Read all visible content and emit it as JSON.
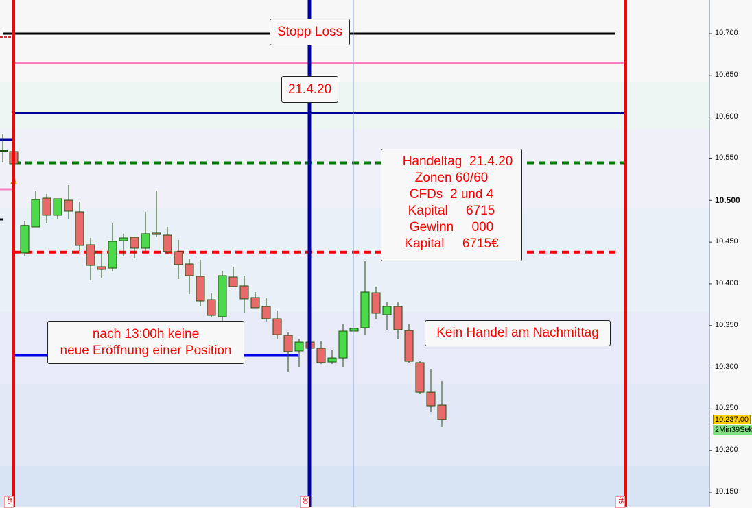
{
  "chart_data": {
    "type": "candlestick",
    "ylim": [
      10.135,
      10.74
    ],
    "yticks": [
      "10.700",
      "10.650",
      "10.600",
      "10.550",
      "10.500",
      "10.450",
      "10.400",
      "10.350",
      "10.300",
      "10.250",
      "10.200",
      "10.150"
    ],
    "ytick_values": [
      10.7,
      10.65,
      10.6,
      10.55,
      10.5,
      10.45,
      10.4,
      10.35,
      10.3,
      10.25,
      10.2,
      10.15
    ],
    "bold_tick": "10.500",
    "candles": [
      {
        "o": 10.5586,
        "h": 10.5586,
        "l": 10.5438,
        "c": 10.5438
      },
      {
        "o": 10.437,
        "h": 10.4756,
        "l": 10.4336,
        "c": 10.47
      },
      {
        "o": 10.4682,
        "h": 10.511,
        "l": 10.4682,
        "c": 10.501
      },
      {
        "o": 10.5027,
        "h": 10.5076,
        "l": 10.4723,
        "c": 10.4822
      },
      {
        "o": 10.4822,
        "h": 10.5019,
        "l": 10.4772,
        "c": 10.5019
      },
      {
        "o": 10.5002,
        "h": 10.5183,
        "l": 10.4772,
        "c": 10.4871
      },
      {
        "o": 10.4863,
        "h": 10.4986,
        "l": 10.4394,
        "c": 10.446
      },
      {
        "o": 10.4468,
        "h": 10.455,
        "l": 10.404,
        "c": 10.4221
      },
      {
        "o": 10.4205,
        "h": 10.437,
        "l": 10.4073,
        "c": 10.4172
      },
      {
        "o": 10.4188,
        "h": 10.473,
        "l": 10.4147,
        "c": 10.4509
      },
      {
        "o": 10.4517,
        "h": 10.46,
        "l": 10.4336,
        "c": 10.455
      },
      {
        "o": 10.4558,
        "h": 10.4567,
        "l": 10.4304,
        "c": 10.4427
      },
      {
        "o": 10.4427,
        "h": 10.4863,
        "l": 10.4394,
        "c": 10.46
      },
      {
        "o": 10.4608,
        "h": 10.5117,
        "l": 10.4558,
        "c": 10.4591
      },
      {
        "o": 10.4583,
        "h": 10.4682,
        "l": 10.4353,
        "c": 10.4386
      },
      {
        "o": 10.4386,
        "h": 10.4526,
        "l": 10.4057,
        "c": 10.423
      },
      {
        "o": 10.4238,
        "h": 10.4295,
        "l": 10.3876,
        "c": 10.4098
      },
      {
        "o": 10.409,
        "h": 10.4287,
        "l": 10.3728,
        "c": 10.3794
      },
      {
        "o": 10.381,
        "h": 10.3884,
        "l": 10.3597,
        "c": 10.3621
      },
      {
        "o": 10.3605,
        "h": 10.4155,
        "l": 10.3556,
        "c": 10.4098
      },
      {
        "o": 10.4082,
        "h": 10.4205,
        "l": 10.3958,
        "c": 10.3967
      },
      {
        "o": 10.3975,
        "h": 10.4098,
        "l": 10.3654,
        "c": 10.3819
      },
      {
        "o": 10.3835,
        "h": 10.3901,
        "l": 10.3712,
        "c": 10.3712
      },
      {
        "o": 10.3728,
        "h": 10.3827,
        "l": 10.3547,
        "c": 10.358
      },
      {
        "o": 10.358,
        "h": 10.3679,
        "l": 10.3334,
        "c": 10.339
      },
      {
        "o": 10.3383,
        "h": 10.3416,
        "l": 10.2947,
        "c": 10.3186
      },
      {
        "o": 10.3194,
        "h": 10.3342,
        "l": 10.2996,
        "c": 10.33
      },
      {
        "o": 10.33,
        "h": 10.33,
        "l": 10.3227,
        "c": 10.3227
      },
      {
        "o": 10.3227,
        "h": 10.3309,
        "l": 10.3038,
        "c": 10.3054
      },
      {
        "o": 10.3062,
        "h": 10.3202,
        "l": 10.3038,
        "c": 10.3111
      },
      {
        "o": 10.3111,
        "h": 10.3514,
        "l": 10.2996,
        "c": 10.3432
      },
      {
        "o": 10.3432,
        "h": 10.3465,
        "l": 10.3432,
        "c": 10.3465
      },
      {
        "o": 10.3473,
        "h": 10.4271,
        "l": 10.339,
        "c": 10.3901
      },
      {
        "o": 10.3892,
        "h": 10.3967,
        "l": 10.3572,
        "c": 10.3646
      },
      {
        "o": 10.3629,
        "h": 10.3786,
        "l": 10.3449,
        "c": 10.3728
      },
      {
        "o": 10.3728,
        "h": 10.3777,
        "l": 10.3334,
        "c": 10.3449
      },
      {
        "o": 10.344,
        "h": 10.3514,
        "l": 10.3054,
        "c": 10.307
      },
      {
        "o": 10.3054,
        "h": 10.307,
        "l": 10.2676,
        "c": 10.27
      },
      {
        "o": 10.27,
        "h": 10.298,
        "l": 10.2462,
        "c": 10.2536
      },
      {
        "o": 10.2544,
        "h": 10.2832,
        "l": 10.2281,
        "c": 10.2372
      }
    ],
    "hlines": [
      {
        "price": 10.7,
        "color": "#000000",
        "style": "solid"
      },
      {
        "price": 10.665,
        "color": "#f77fbf",
        "style": "solid"
      },
      {
        "price": 10.605,
        "color": "#0000a0",
        "style": "solid"
      },
      {
        "price": 10.545,
        "color": "#007a00",
        "style": "dashed"
      },
      {
        "price": 10.438,
        "color": "#ff0000",
        "style": "dashed"
      },
      {
        "price": 10.314,
        "color": "#0000ee",
        "style": "solid-partial"
      }
    ],
    "vlines": [
      {
        "color": "#ff0000",
        "bottom_tag": "45"
      },
      {
        "color": "#0000a0",
        "bottom_tag": "30"
      },
      {
        "color": "#7f9fe0",
        "bottom_tag": ""
      },
      {
        "color": "#ff0000",
        "bottom_tag": "45"
      }
    ],
    "colors": {
      "up": "#4cd94c",
      "down": "#e86a6a",
      "wick": "#1f4f0f"
    },
    "last_price": "10.237,00",
    "countdown": "2Min39Sek"
  },
  "annotations": {
    "stop_loss": "Stopp Loss",
    "date": "21.4.20",
    "info_lines": [
      "Handeltag  21.4.20",
      "Zonen 60/60",
      "CFDs  2 und 4",
      "Kapital     6715",
      "Gewinn     000",
      "Kapital     6715€"
    ],
    "no_open_lines": [
      "nach 13:00h keine",
      "neue Eröffnung einer Position"
    ],
    "no_afternoon": "Kein Handel am Nachmittag"
  }
}
